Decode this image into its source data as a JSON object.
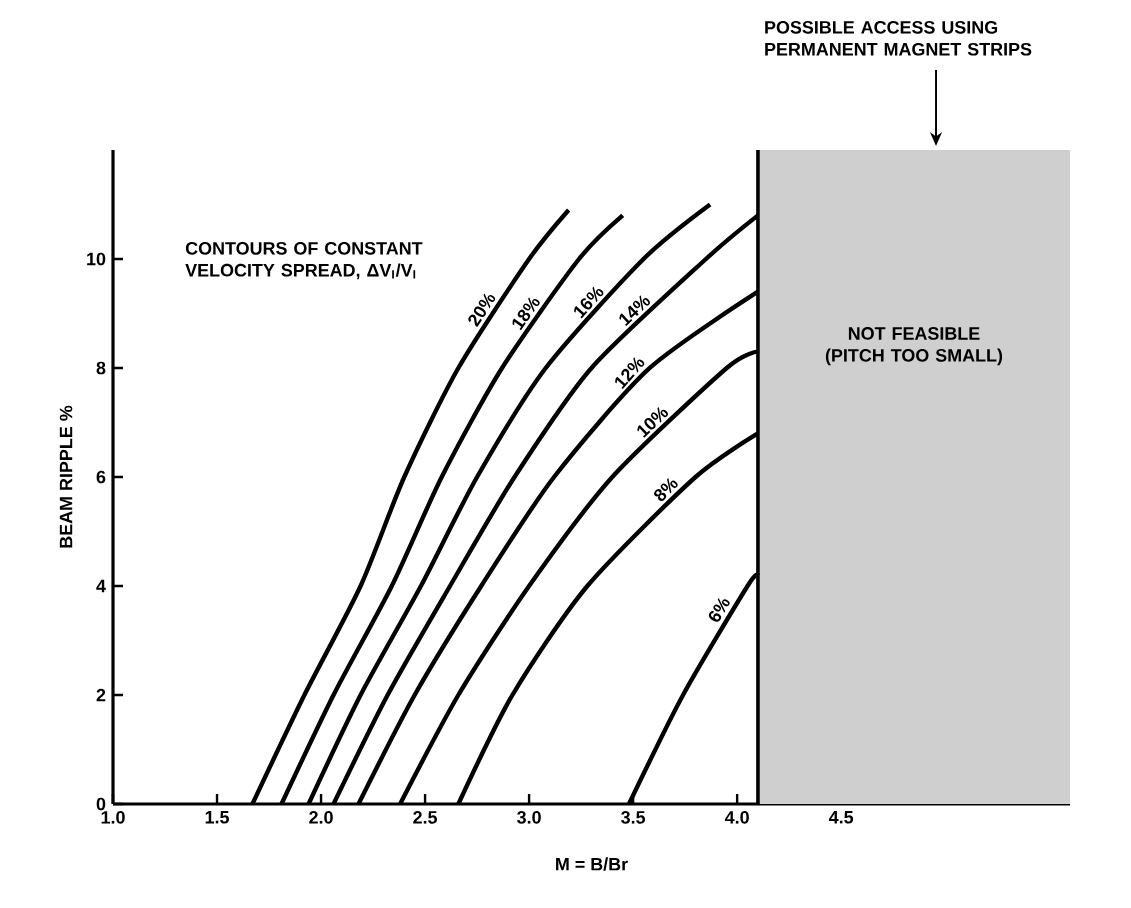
{
  "chart_data": {
    "type": "line",
    "xlabel": "M = B/Br",
    "ylabel": "BEAM RIPPLE %",
    "xlim": [
      1.0,
      5.6
    ],
    "ylim": [
      0,
      12
    ],
    "xticks": [
      {
        "value": 1,
        "label": "1.0"
      },
      {
        "value": 1.5,
        "label": "1.5"
      },
      {
        "value": 2,
        "label": "2.0"
      },
      {
        "value": 2.5,
        "label": "2.5"
      },
      {
        "value": 3,
        "label": "3.0"
      },
      {
        "value": 3.5,
        "label": "3.5"
      },
      {
        "value": 4,
        "label": "4.0"
      },
      {
        "value": 4.5,
        "label": "4.5"
      }
    ],
    "yticks": [
      0,
      2,
      4,
      6,
      8,
      10
    ],
    "grid": false,
    "line_style": "solid",
    "ref_lines": [
      {
        "axis": "x",
        "value": 4.1,
        "color": "#000000"
      }
    ],
    "series": [
      {
        "name": "20%",
        "color": "#000000",
        "x": [
          1.67,
          1.92,
          2.19,
          2.4,
          2.66,
          3.0,
          3.19
        ],
        "values": [
          0,
          2,
          4,
          6,
          8,
          10,
          10.9
        ]
      },
      {
        "name": "18%",
        "color": "#000000",
        "x": [
          1.81,
          2.06,
          2.34,
          2.58,
          2.87,
          3.24,
          3.45
        ],
        "values": [
          0,
          2,
          4,
          6,
          8,
          10,
          10.8
        ]
      },
      {
        "name": "16%",
        "color": "#000000",
        "x": [
          1.94,
          2.19,
          2.48,
          2.75,
          3.08,
          3.55,
          3.87
        ],
        "values": [
          0,
          2,
          4,
          6,
          8,
          10,
          11.0
        ]
      },
      {
        "name": "14%",
        "color": "#000000",
        "x": [
          2.06,
          2.32,
          2.62,
          2.93,
          3.3,
          3.85,
          4.1
        ],
        "values": [
          0,
          2,
          4,
          6,
          8,
          10,
          10.8
        ]
      },
      {
        "name": "12%",
        "color": "#000000",
        "x": [
          2.18,
          2.45,
          2.77,
          3.12,
          3.58,
          4.1
        ],
        "values": [
          0,
          2,
          4,
          6,
          8,
          9.4
        ]
      },
      {
        "name": "10%",
        "color": "#000000",
        "x": [
          2.38,
          2.66,
          3.0,
          3.4,
          3.95,
          4.1
        ],
        "values": [
          0,
          2,
          4,
          6,
          8,
          8.3
        ]
      },
      {
        "name": "8%",
        "color": "#000000",
        "x": [
          2.66,
          2.92,
          3.28,
          3.8,
          4.1
        ],
        "values": [
          0,
          2,
          4,
          6,
          6.8
        ]
      },
      {
        "name": "6%",
        "color": "#000000",
        "x": [
          3.48,
          3.74,
          4.05,
          4.1
        ],
        "values": [
          0,
          2,
          4,
          4.2
        ]
      }
    ],
    "bands": [
      {
        "axis": "x",
        "from": 4.1,
        "to": 5.6,
        "label": "NOT FEASIBLE (PITCH TOO SMALL)",
        "color": "#cfcfcf"
      }
    ],
    "annotations": [
      "CONTOURS OF CONSTANT VELOCITY SPREAD, ΔV$_{I}$/V$_{I}$",
      "POSSIBLE ACCESS USING PERMANENT MAGNET STRIPS"
    ]
  }
}
